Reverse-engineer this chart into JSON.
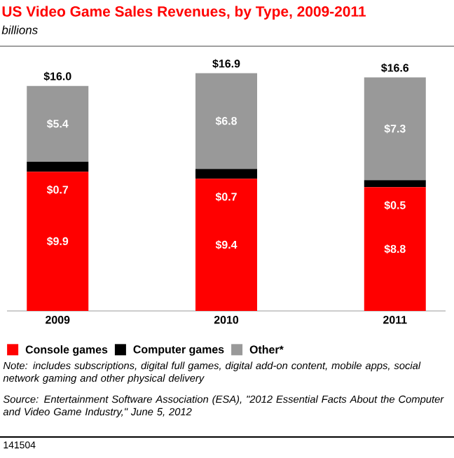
{
  "chart_data": {
    "type": "bar",
    "stacked": true,
    "title": "US Video Game Sales Revenues, by Type, 2009-2011",
    "subtitle": "billions",
    "categories": [
      "2009",
      "2010",
      "2011"
    ],
    "series": [
      {
        "name": "Console games",
        "color": "#ff0000",
        "values": [
          9.9,
          9.4,
          8.8
        ],
        "value_labels": [
          "$9.9",
          "$9.4",
          "$8.8"
        ]
      },
      {
        "name": "Computer games",
        "color": "#000000",
        "values": [
          0.7,
          0.7,
          0.5
        ],
        "value_labels": [
          "$0.7",
          "$0.7",
          "$0.5"
        ]
      },
      {
        "name": "Other*",
        "color": "#999999",
        "values": [
          5.4,
          6.8,
          7.3
        ],
        "value_labels": [
          "$5.4",
          "$6.8",
          "$7.3"
        ]
      }
    ],
    "totals": [
      "$16.0",
      "$16.9",
      "$16.6"
    ],
    "legend": "bottom",
    "annotations": [
      "Note: includes subscriptions, digital full games, digital add-on content, mobile apps, social network gaming and other physical delivery",
      "Source: Entertainment Software Association (ESA), \"2012 Essential Facts About the Computer and Video Game Industry,\" June 5, 2012",
      "141504"
    ]
  }
}
